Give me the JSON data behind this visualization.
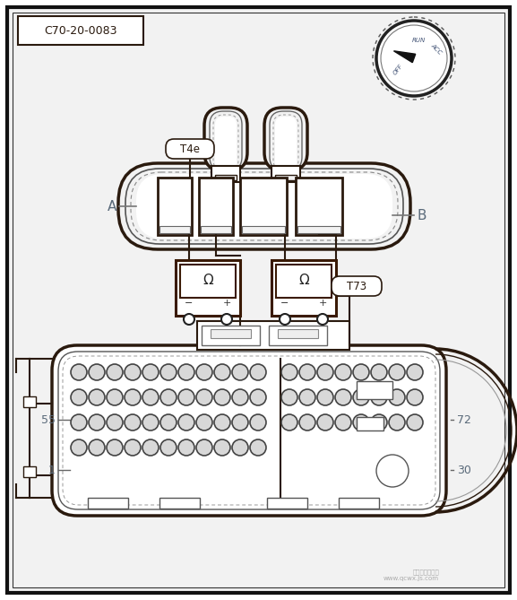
{
  "title_box": "C70-20-0083",
  "label_T4e": "T4e",
  "label_T73": "T73",
  "label_A": "A",
  "label_B": "B",
  "label_55": "55",
  "label_1": "1",
  "label_72": "72",
  "label_30": "30",
  "bg_color": "#ffffff",
  "outer_bg": "#f2f2f2",
  "line_color": "#2a1a0e",
  "thin_line": "#4a3a2e",
  "fill_color": "#ffffff",
  "gray_fill": "#e0e0e0",
  "label_color": "#5a6a7a",
  "watermark": "汽车维修技术网\nwww.qcwx.js.com"
}
